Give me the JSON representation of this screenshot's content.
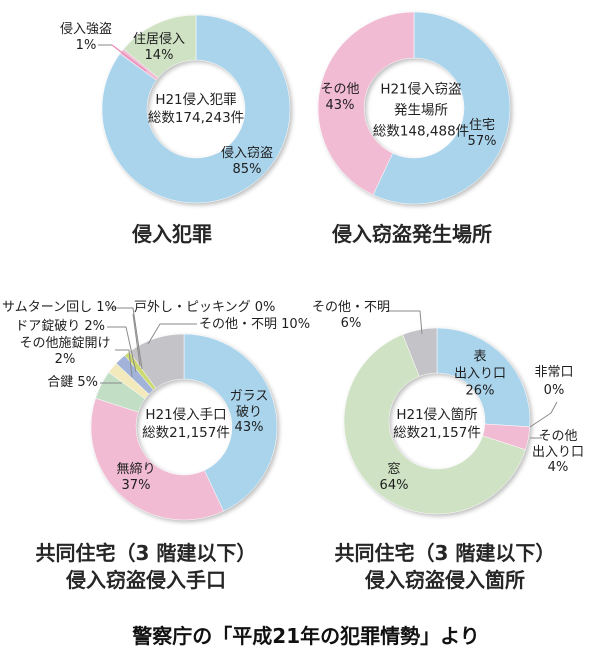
{
  "caption": "警察庁の「平成21年の犯罪情勢」より",
  "chart_data": [
    {
      "type": "pie",
      "subtype": "donut",
      "title_lines": [
        "侵入犯罪"
      ],
      "center_lines": [
        "H21侵入犯罪",
        "総数174,243件"
      ],
      "total_count": 174243,
      "unit": "%",
      "start_angle_deg": 0,
      "direction": "clockwise",
      "segments": [
        {
          "name": "侵入窃盗",
          "value": 85,
          "pct_label": "85%",
          "color": "#aad4ec"
        },
        {
          "name": "侵入強盗",
          "value": 1,
          "pct_label": "1%",
          "color": "#f1bbd3"
        },
        {
          "name": "住居侵入",
          "value": 14,
          "pct_label": "14%",
          "color": "#cfe3c4"
        }
      ]
    },
    {
      "type": "pie",
      "subtype": "donut",
      "title_lines": [
        "侵入窃盗発生場所"
      ],
      "center_lines": [
        "H21侵入窃盗",
        "発生場所",
        "総数148,488件"
      ],
      "total_count": 148488,
      "unit": "%",
      "start_angle_deg": 0,
      "direction": "clockwise",
      "segments": [
        {
          "name": "住宅",
          "value": 57,
          "pct_label": "57%",
          "color": "#aad4ec"
        },
        {
          "name": "その他",
          "value": 43,
          "pct_label": "43%",
          "color": "#f1bbd3"
        }
      ]
    },
    {
      "type": "pie",
      "subtype": "donut",
      "title_lines": [
        "共同住宅（3 階建以下）",
        "侵入窃盗侵入手口"
      ],
      "center_lines": [
        "H21侵入手口",
        "総数21,157件"
      ],
      "total_count": 21157,
      "unit": "%",
      "start_angle_deg": 0,
      "direction": "clockwise",
      "segments": [
        {
          "name": "ガラス破り",
          "name_lines": [
            "ガラス",
            "破り"
          ],
          "value": 43,
          "pct_label": "43%",
          "color": "#aad4ec"
        },
        {
          "name": "無締り",
          "value": 37,
          "pct_label": "37%",
          "color": "#f1bbd3"
        },
        {
          "name": "合鍵",
          "value": 5,
          "pct_label": "5%",
          "color": "#c2dfc6"
        },
        {
          "name": "その他施錠開け",
          "value": 2,
          "pct_label": "2%",
          "color": "#f2e9bd"
        },
        {
          "name": "ドア錠破り",
          "value": 2,
          "pct_label": "2%",
          "color": "#a2b3da"
        },
        {
          "name": "サムターン回し",
          "value": 1,
          "pct_label": "1%",
          "color": "#ccd96e"
        },
        {
          "name": "戸外し・ピッキング",
          "value": 0,
          "pct_label": "0%",
          "color": "#e8e8e8"
        },
        {
          "name": "その他・不明",
          "value": 10,
          "pct_label": "10%",
          "color": "#c4c4c8"
        }
      ]
    },
    {
      "type": "pie",
      "subtype": "donut",
      "title_lines": [
        "共同住宅（3 階建以下）",
        "侵入窃盗侵入箇所"
      ],
      "center_lines": [
        "H21侵入箇所",
        "総数21,157件"
      ],
      "total_count": 21157,
      "unit": "%",
      "start_angle_deg": 0,
      "direction": "clockwise",
      "segments": [
        {
          "name": "表出入り口",
          "name_lines": [
            "表",
            "出入り口"
          ],
          "value": 26,
          "pct_label": "26%",
          "color": "#aad4ec"
        },
        {
          "name": "非常口",
          "value": 0,
          "pct_label": "0%",
          "color": "#e8e8e8"
        },
        {
          "name": "その他出入り口",
          "name_lines": [
            "その他",
            "出入り口"
          ],
          "value": 4,
          "pct_label": "4%",
          "color": "#f1bbd3"
        },
        {
          "name": "窓",
          "value": 64,
          "pct_label": "64%",
          "color": "#cfe3c4"
        },
        {
          "name": "その他・不明",
          "value": 6,
          "pct_label": "6%",
          "color": "#c4c4c8"
        }
      ]
    }
  ]
}
